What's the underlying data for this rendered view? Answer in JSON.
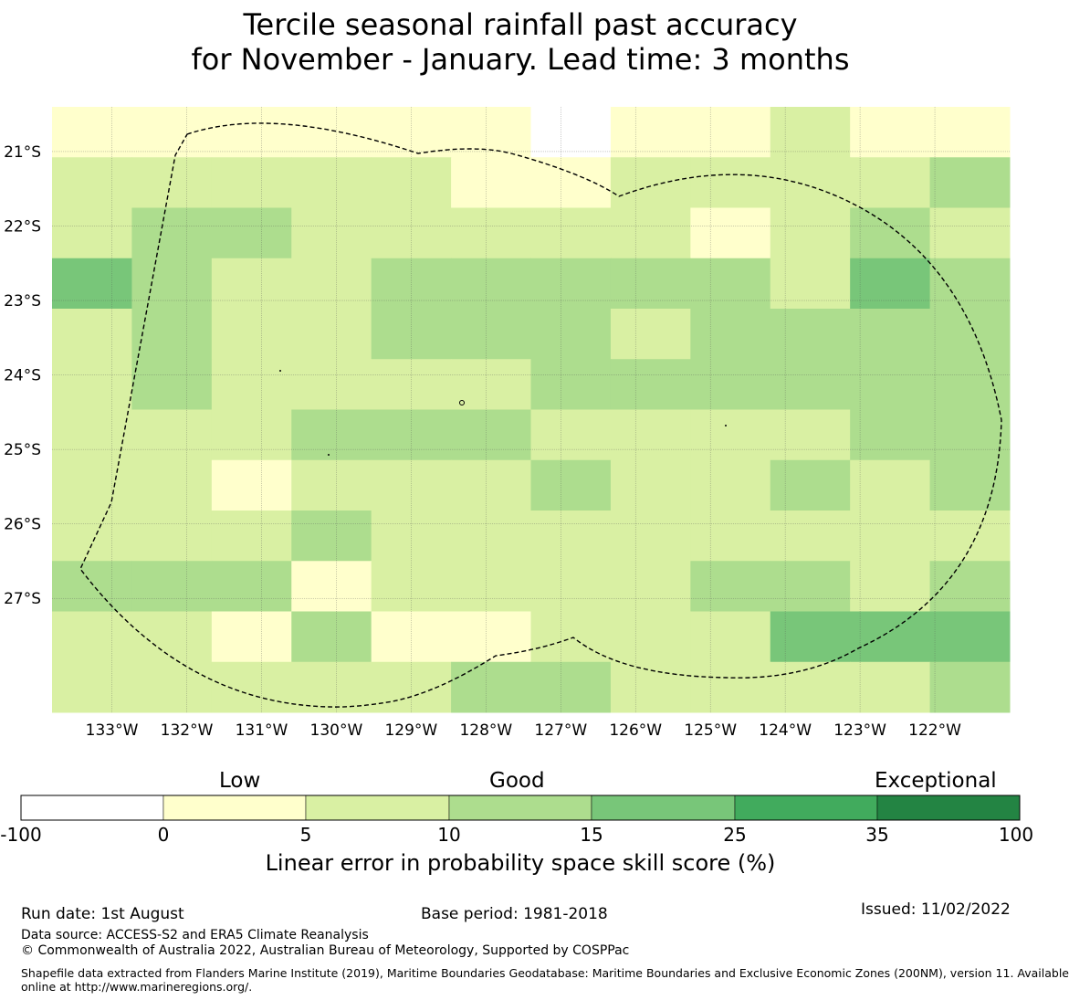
{
  "title": {
    "line1": "Tercile seasonal rainfall past accuracy",
    "line2": "for November - January. Lead time: 3 months"
  },
  "map": {
    "lat_ticks": [
      "21°S",
      "22°S",
      "23°S",
      "24°S",
      "25°S",
      "26°S",
      "27°S"
    ],
    "lon_ticks": [
      "133°W",
      "132°W",
      "131°W",
      "130°W",
      "129°W",
      "128°W",
      "127°W",
      "126°W",
      "125°W",
      "124°W",
      "123°W",
      "122°W"
    ],
    "lat_values": [
      -21,
      -22,
      -23,
      -24,
      -25,
      -26,
      -27
    ],
    "lon_values": [
      -133,
      -132,
      -131,
      -130,
      -129,
      -128,
      -127,
      -126,
      -125,
      -124,
      -123,
      -122
    ],
    "extent": {
      "lon": [
        -133.8,
        -121.0
      ],
      "lat": [
        -28.53,
        -20.4
      ]
    },
    "grid_colors": {
      "0": "#ffffff",
      "1": "#ffffcc",
      "2": "#d9f0a3",
      "3": "#addd8e",
      "4": "#78c679"
    },
    "grid": [
      "111111011211",
      "222221122223",
      "233222221232",
      "432233333243",
      "232233323333",
      "232222333333",
      "222333222233",
      "221222322323",
      "222322222222",
      "333122223323",
      "221311222444",
      "222223322223"
    ],
    "boundary_style": "dashed"
  },
  "colorbar": {
    "categories": [
      "Low",
      "Good",
      "Exceptional"
    ],
    "ticks": [
      "-100",
      "0",
      "5",
      "10",
      "15",
      "25",
      "35",
      "100"
    ],
    "colors": [
      "#ffffff",
      "#ffffcc",
      "#d9f0a3",
      "#addd8e",
      "#78c679",
      "#41ab5d",
      "#238443"
    ],
    "label": "Linear error in probability space skill score (%)"
  },
  "footer": {
    "run_date": "Run date: 1st August",
    "base_period": "Base period: 1981-2018",
    "issued": "Issued: 11/02/2022",
    "data_source": "Data source: ACCESS-S2 and ERA5 Climate Reanalysis",
    "copyright": "© Commonwealth of Australia 2022, Australian Bureau of Meteorology, Supported by COSPPac",
    "shapefile_line1": "Shapefile data extracted from Flanders Marine Institute (2019), Maritime Boundaries Geodatabase: Maritime Boundaries and Exclusive Economic Zones (200NM), version 11. Available",
    "shapefile_line2": "online at http://www.marineregions.org/."
  }
}
